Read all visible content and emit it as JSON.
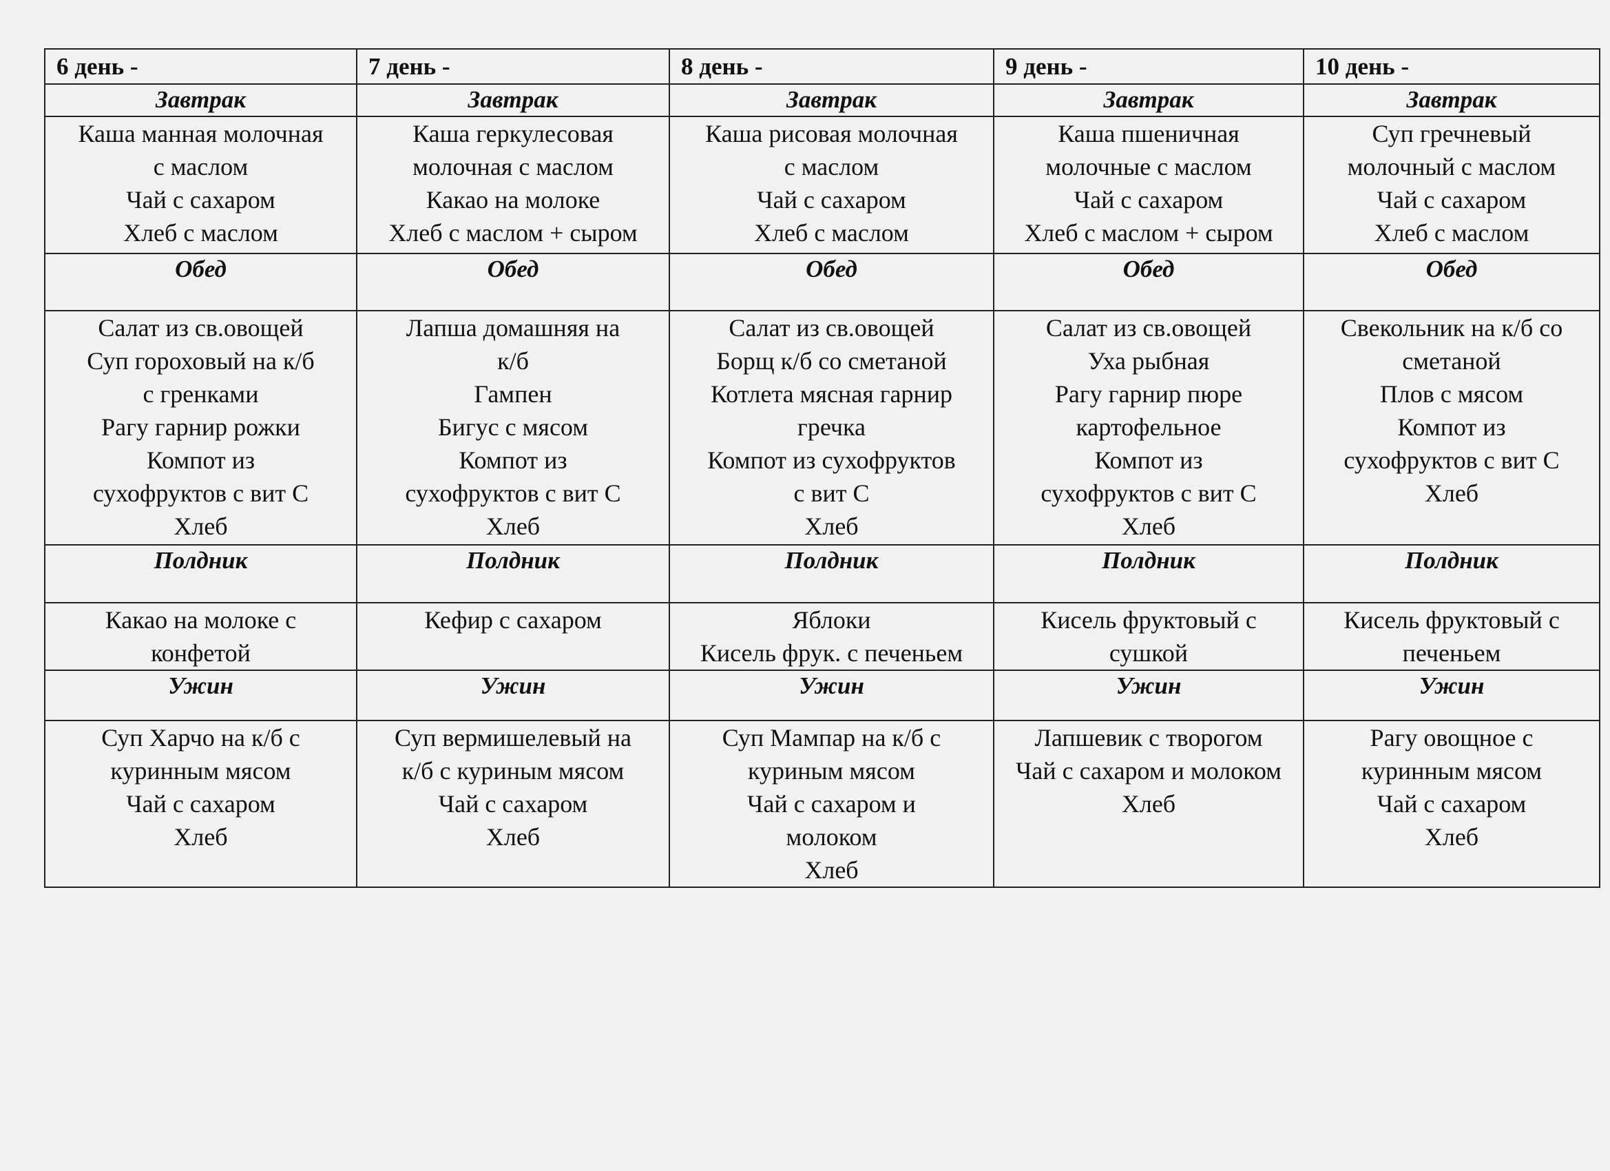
{
  "days": [
    {
      "title": "6 день -",
      "breakfast_label": "Завтрак",
      "breakfast": [
        "Каша манная молочная",
        "с маслом",
        "Чай с сахаром",
        "Хлеб с маслом"
      ],
      "lunch_label": "Обед",
      "lunch": [
        "Салат из св.овощей",
        "Суп гороховый на к/б",
        "с гренками",
        "Рагу гарнир рожки",
        "Компот из",
        "сухофруктов с вит С",
        "Хлеб"
      ],
      "snack_label": "Полдник",
      "snack": [
        "Какао на молоке с",
        "конфетой"
      ],
      "dinner_label": "Ужин",
      "dinner": [
        "Суп Харчо на к/б с",
        "куринным мясом",
        "Чай с сахаром",
        "Хлеб"
      ]
    },
    {
      "title": "7 день -",
      "breakfast_label": "Завтрак",
      "breakfast": [
        "Каша геркулесовая",
        "молочная с маслом",
        "Какао на молоке",
        "Хлеб с маслом + сыром"
      ],
      "lunch_label": "Обед",
      "lunch": [
        "Лапша домашняя на",
        "к/б",
        "Гампен",
        "Бигус с мясом",
        "Компот  из",
        "сухофруктов с вит С",
        "Хлеб"
      ],
      "snack_label": "Полдник",
      "snack": [
        "Кефир с сахаром"
      ],
      "dinner_label": "Ужин",
      "dinner": [
        "Суп вермишелевый на",
        "к/б с куриным мясом",
        "Чай с сахаром",
        "Хлеб"
      ]
    },
    {
      "title": "8 день  -",
      "breakfast_label": "Завтрак",
      "breakfast": [
        "Каша рисовая молочная",
        "с маслом",
        "Чай с сахаром",
        "Хлеб  с маслом"
      ],
      "lunch_label": "Обед",
      "lunch": [
        "Салат из св.овощей",
        "Борщ к/б со сметаной",
        "Котлета мясная гарнир",
        "гречка",
        "Компот из сухофруктов",
        "с вит С",
        "Хлеб"
      ],
      "snack_label": "Полдник",
      "snack": [
        "Яблоки",
        "Кисель фрук. с печеньем"
      ],
      "dinner_label": "Ужин",
      "dinner": [
        "Суп Мампар на к/б с",
        "куриным мясом",
        "Чай с сахаром и",
        "молоком",
        "Хлеб"
      ]
    },
    {
      "title": "9 день  -",
      "breakfast_label": "Завтрак",
      "breakfast": [
        "Каша пшеничная",
        "молочные с маслом",
        "Чай с сахаром",
        "Хлеб с маслом + сыром"
      ],
      "lunch_label": "Обед",
      "lunch": [
        "Салат из св.овощей",
        "Уха рыбная",
        "Рагу гарнир пюре",
        "картофельное",
        "Компот из",
        "сухофруктов с вит С",
        "Хлеб"
      ],
      "snack_label": "Полдник",
      "snack": [
        "Кисель фруктовый с",
        "сушкой"
      ],
      "dinner_label": "Ужин",
      "dinner": [
        "Лапшевик с творогом",
        "Чай с сахаром и молоком",
        "Хлеб"
      ]
    },
    {
      "title": "10 день  -",
      "breakfast_label": "Завтрак",
      "breakfast": [
        "Суп гречневый",
        "молочный с маслом",
        "Чай с сахаром",
        "Хлеб с маслом"
      ],
      "lunch_label": "Обед",
      "lunch": [
        "Свекольник на к/б со",
        "сметаной",
        "Плов с мясом",
        "Компот из",
        "сухофруктов с вит С",
        "Хлеб"
      ],
      "snack_label": "Полдник",
      "snack": [
        "Кисель фруктовый с",
        "печеньем"
      ],
      "dinner_label": "Ужин",
      "dinner": [
        "Рагу овощное с",
        "куринным мясом",
        "Чай с сахаром",
        "Хлеб"
      ]
    }
  ]
}
